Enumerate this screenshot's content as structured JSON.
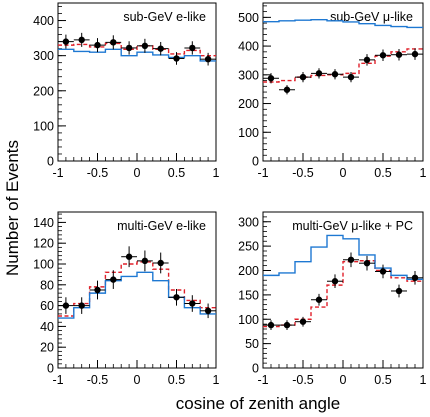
{
  "chart_data": [
    {
      "type": "line",
      "title": "sub-GeV e-like",
      "xlabel": "cosine of zenith angle",
      "ylabel": "Number of Events",
      "xlim": [
        -1,
        1
      ],
      "ylim": [
        0,
        450
      ],
      "yticks": [
        0,
        100,
        200,
        300,
        400
      ],
      "xticks": [
        "-1",
        "-0.5",
        "0",
        "0.5",
        "1"
      ],
      "x": [
        -0.9,
        -0.7,
        -0.5,
        -0.3,
        -0.1,
        0.1,
        0.3,
        0.5,
        0.7,
        0.9
      ],
      "series": [
        {
          "values": [
            340,
            345,
            330,
            338,
            322,
            328,
            320,
            292,
            322,
            290
          ],
          "errors": [
            20,
            20,
            20,
            20,
            19,
            20,
            19,
            18,
            19,
            18
          ],
          "style": "data-points",
          "color": "#000000"
        },
        {
          "values": [
            330,
            332,
            325,
            335,
            318,
            328,
            318,
            305,
            315,
            300
          ],
          "style": "dashed-step",
          "color": "#e0202a"
        },
        {
          "values": [
            318,
            312,
            310,
            318,
            300,
            310,
            302,
            295,
            300,
            285
          ],
          "style": "step",
          "color": "#1e78d2"
        }
      ]
    },
    {
      "type": "line",
      "title": "sub-GeV μ-like",
      "xlim": [
        -1,
        1
      ],
      "ylim": [
        0,
        550
      ],
      "yticks": [
        0,
        100,
        200,
        300,
        400,
        500
      ],
      "xticks": [
        "-1",
        "-0.5",
        "0",
        "0.5",
        "1"
      ],
      "x": [
        -0.9,
        -0.7,
        -0.5,
        -0.3,
        -0.1,
        0.1,
        0.3,
        0.5,
        0.7,
        0.9
      ],
      "series": [
        {
          "values": [
            288,
            248,
            292,
            305,
            302,
            292,
            352,
            368,
            370,
            372
          ],
          "errors": [
            18,
            16,
            18,
            18,
            18,
            18,
            20,
            20,
            20,
            20
          ],
          "style": "data-points",
          "color": "#000000"
        },
        {
          "values": [
            275,
            280,
            292,
            298,
            300,
            305,
            340,
            365,
            380,
            390
          ],
          "style": "dashed-step",
          "color": "#e0202a"
        },
        {
          "values": [
            485,
            488,
            490,
            492,
            488,
            484,
            478,
            472,
            468,
            465
          ],
          "style": "step",
          "color": "#1e78d2"
        }
      ]
    },
    {
      "type": "line",
      "title": "multi-GeV e-like",
      "xlim": [
        -1,
        1
      ],
      "ylim": [
        0,
        150
      ],
      "yticks": [
        0,
        20,
        40,
        60,
        80,
        100,
        120,
        140
      ],
      "xticks": [
        "-1",
        "-0.5",
        "0",
        "0.5",
        "1"
      ],
      "x": [
        -0.9,
        -0.7,
        -0.5,
        -0.3,
        -0.1,
        0.1,
        0.3,
        0.5,
        0.7,
        0.9
      ],
      "series": [
        {
          "values": [
            60,
            60,
            75,
            85,
            107,
            103,
            101,
            68,
            62,
            55
          ],
          "errors": [
            8,
            8,
            9,
            9,
            10,
            10,
            10,
            8,
            8,
            7
          ],
          "style": "data-points",
          "color": "#000000"
        },
        {
          "values": [
            50,
            62,
            78,
            92,
            100,
            102,
            95,
            75,
            65,
            58
          ],
          "style": "dashed-step",
          "color": "#e0202a"
        },
        {
          "values": [
            48,
            58,
            72,
            84,
            88,
            92,
            84,
            68,
            58,
            52
          ],
          "style": "step",
          "color": "#1e78d2"
        }
      ]
    },
    {
      "type": "line",
      "title": "multi-GeV μ-like + PC",
      "xlim": [
        -1,
        1
      ],
      "ylim": [
        0,
        320
      ],
      "yticks": [
        0,
        50,
        100,
        150,
        200,
        250,
        300
      ],
      "xticks": [
        "-1",
        "-0.5",
        "0",
        "0.5",
        "1"
      ],
      "x": [
        -0.9,
        -0.7,
        -0.5,
        -0.3,
        -0.1,
        0.1,
        0.3,
        0.5,
        0.7,
        0.9
      ],
      "series": [
        {
          "values": [
            88,
            88,
            95,
            140,
            178,
            222,
            215,
            198,
            158,
            185
          ],
          "errors": [
            10,
            10,
            10,
            12,
            14,
            15,
            15,
            14,
            13,
            14
          ],
          "style": "data-points",
          "color": "#000000"
        },
        {
          "values": [
            85,
            88,
            100,
            125,
            170,
            218,
            220,
            200,
            185,
            178
          ],
          "style": "dashed-step",
          "color": "#e0202a"
        },
        {
          "values": [
            190,
            195,
            218,
            248,
            272,
            265,
            232,
            205,
            190,
            182
          ],
          "style": "step",
          "color": "#1e78d2"
        }
      ]
    }
  ],
  "labels": {
    "xaxis": "cosine of zenith angle",
    "yaxis": "Number of Events"
  }
}
